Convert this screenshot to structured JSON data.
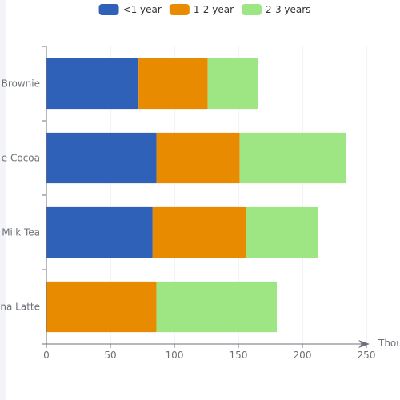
{
  "chart_data": {
    "type": "bar",
    "orientation": "horizontal",
    "stacked": true,
    "categories": [
      "Matcha Latte",
      "Milk Tea",
      "Cheese Cocoa",
      "Walnut Brownie"
    ],
    "category_labels": [
      "na Latte",
      "Milk Tea",
      "e Cocoa",
      "Brownie"
    ],
    "series": [
      {
        "name": "<1 year",
        "values": [
          0,
          83,
          86,
          72
        ],
        "color": "#3061b8"
      },
      {
        "name": "1-2 year",
        "values": [
          86,
          73,
          65,
          54
        ],
        "color": "#e98b00"
      },
      {
        "name": "2-3 years",
        "values": [
          94,
          56,
          83,
          39
        ],
        "color": "#9ee684"
      }
    ],
    "xlabel": "Thou",
    "xlim": [
      0,
      250
    ],
    "xticks": [
      0,
      50,
      100,
      150,
      200,
      250
    ],
    "grid": true,
    "legend_position": "top-center"
  }
}
